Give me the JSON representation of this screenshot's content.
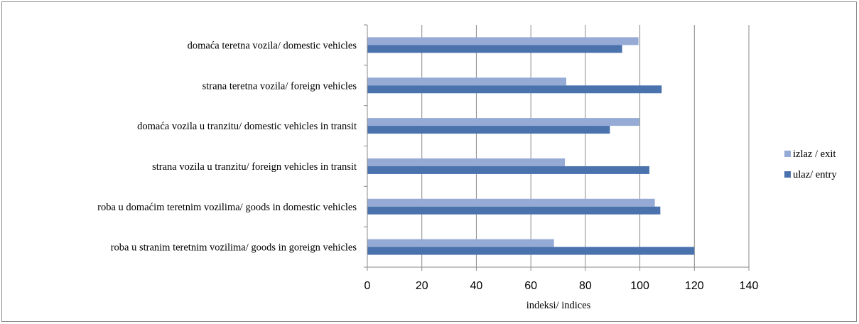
{
  "chart_data": {
    "type": "bar",
    "orientation": "horizontal",
    "categories": [
      "domaća teretna vozila/ domestic vehicles",
      "strana teretna vozila/ foreign vehicles",
      "domaća vozila u tranzitu/ domestic vehicles in transit",
      "strana vozila u tranzitu/ foreign vehicles in transit",
      "roba u domaćim teretnim vozilima/ goods in domestic vehicles",
      "roba u stranim teretnim vozilima/ goods in goreign vehicles"
    ],
    "series": [
      {
        "name": "izlaz / exit",
        "color": "#95abd6",
        "values": [
          99.5,
          73,
          99.8,
          72.5,
          105.5,
          68.5
        ]
      },
      {
        "name": "ulaz/ entry",
        "color": "#4a72ad",
        "values": [
          93.5,
          108,
          89,
          103.5,
          107.5,
          120
        ]
      }
    ],
    "xlabel": "indeksi/ indices",
    "xlim": [
      0,
      140
    ],
    "xticks": [
      "0",
      "20",
      "40",
      "60",
      "80",
      "100",
      "120",
      "140"
    ],
    "grid": true,
    "legend_position": "right"
  }
}
